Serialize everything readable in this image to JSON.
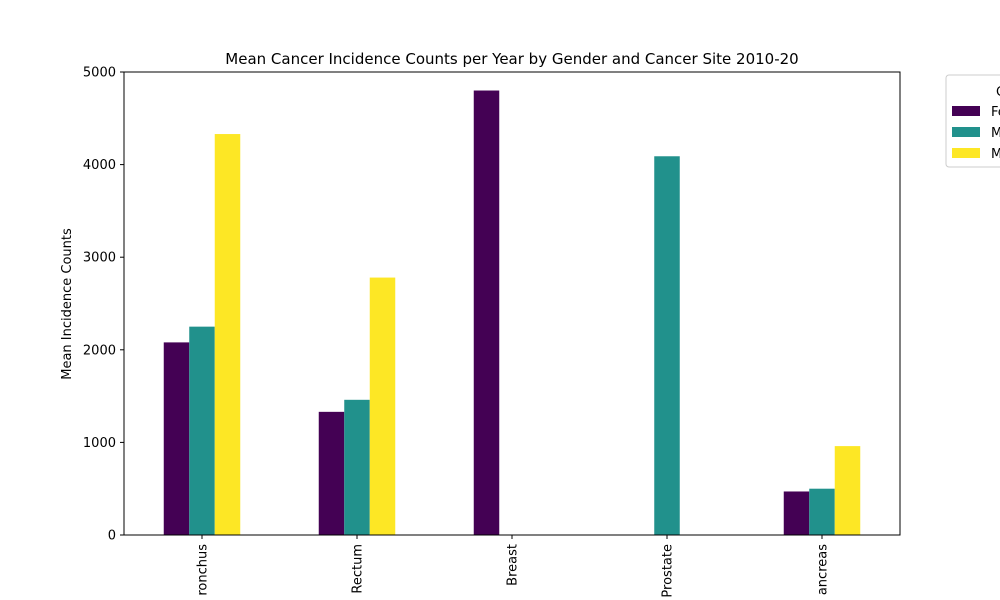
{
  "chart_data": {
    "type": "bar",
    "title": "Mean Cancer Incidence Counts per Year by Gender and Cancer Site 2010-20",
    "xlabel": "",
    "ylabel": "Mean Incidence Counts",
    "ylim": [
      0,
      5000
    ],
    "yticks": [
      0,
      1000,
      2000,
      3000,
      4000,
      5000
    ],
    "grid": false,
    "categories": [
      "ronchus",
      "Rectum",
      "Breast",
      "Prostate",
      "ancreas"
    ],
    "series": [
      {
        "name": "Fe",
        "color": "#440154",
        "values": [
          2080,
          1330,
          4800,
          null,
          470
        ]
      },
      {
        "name": "M",
        "color": "#21918c",
        "values": [
          2250,
          1460,
          null,
          4090,
          500
        ]
      },
      {
        "name": "M",
        "color": "#fde725",
        "values": [
          4330,
          2780,
          null,
          null,
          960
        ]
      }
    ],
    "legend": {
      "title": "G",
      "location": "upper-right, outside plot, clipped"
    }
  }
}
